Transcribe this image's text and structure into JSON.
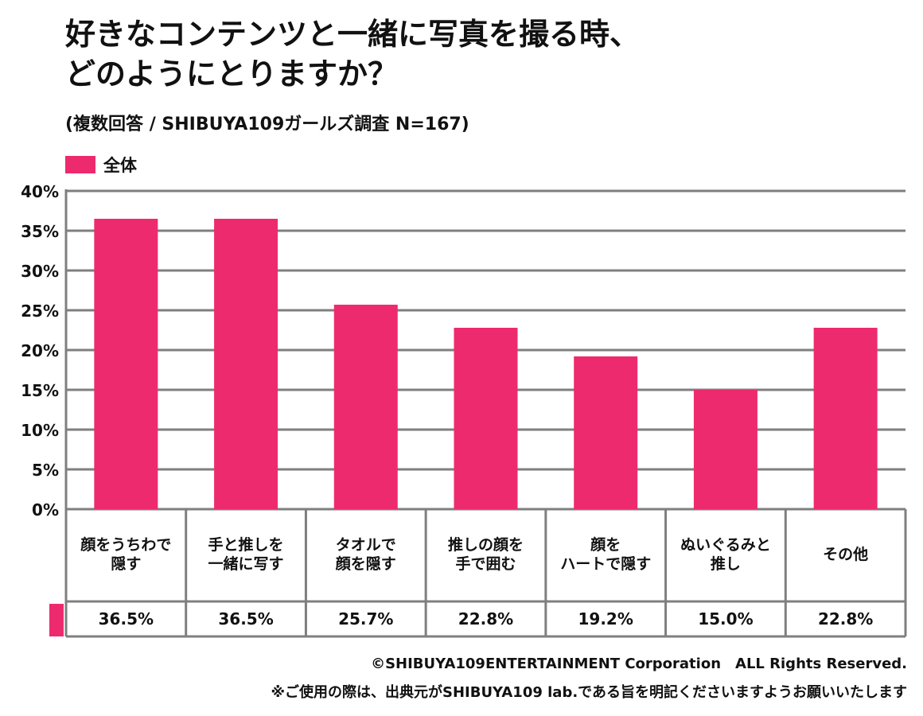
{
  "header": {
    "title_line1": "好きなコンテンツと一緒に写真を撮る時、",
    "title_line2": "どのようにとりますか？",
    "subtitle": "(複数回答 / SHIBUYA109ガールズ調査 N=167)"
  },
  "footer": {
    "copyright": "©SHIBUYA109ENTERTAINMENT Corporation　ALL Rights Reserved.",
    "notice": "※ご使用の際は、出典元がSHIBUYA109 lab.である旨を明記くださいますようお願いいたします"
  },
  "colors": {
    "bar": "#ee2a6e",
    "grid": "#7f7f7f"
  },
  "chart_data": {
    "type": "bar",
    "categories": [
      "顔をうちわで\n隠す",
      "手と推しを\n一緒に写す",
      "タオルで\n顔を隠す",
      "推しの顔を\n手で囲む",
      "顔を\nハートで隠す",
      "ぬいぐるみと\n推し",
      "その他"
    ],
    "series": [
      {
        "name": "全体",
        "values": [
          36.5,
          36.5,
          25.7,
          22.8,
          19.2,
          15.0,
          22.8
        ],
        "labels": [
          "36.5%",
          "36.5%",
          "25.7%",
          "22.8%",
          "19.2%",
          "15.0%",
          "22.8%"
        ]
      }
    ],
    "ylim": [
      0,
      40
    ],
    "yticks": [
      "0%",
      "5%",
      "10%",
      "15%",
      "20%",
      "25%",
      "30%",
      "35%",
      "40%"
    ],
    "grid": true,
    "legend": "top-left"
  }
}
